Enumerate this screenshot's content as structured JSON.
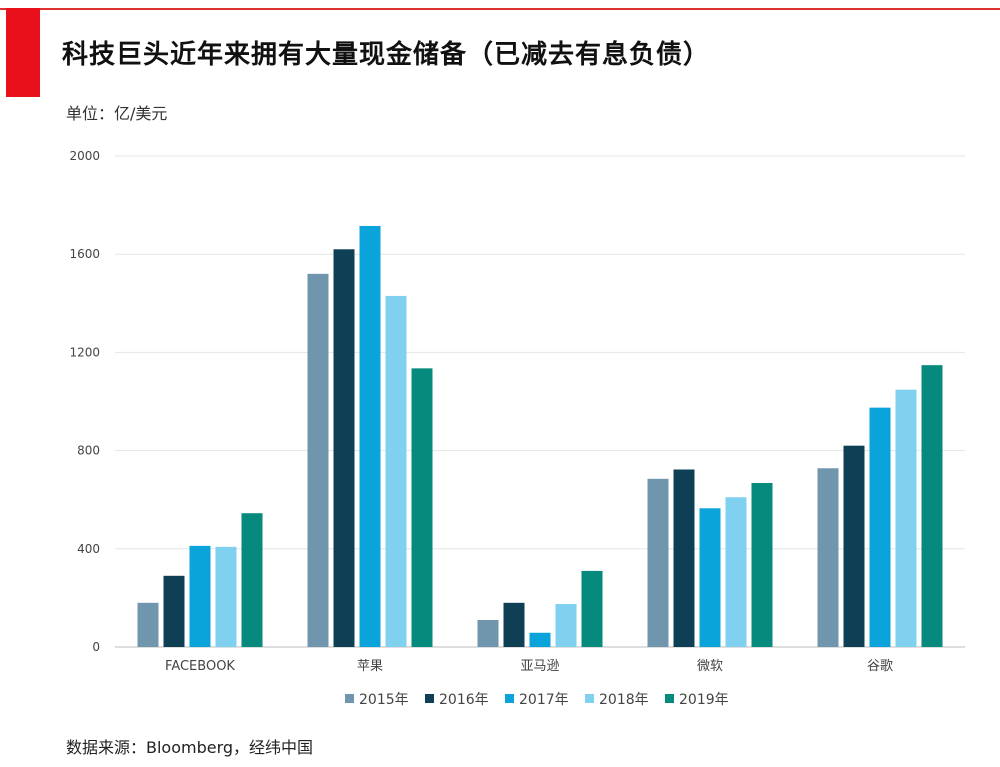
{
  "header": {
    "title": "科技巨头近年来拥有大量现金储备（已减去有息负债）",
    "unit": "单位：亿/美元"
  },
  "footer": {
    "source": "数据来源：Bloomberg，经纬中国"
  },
  "colors": {
    "accent": "#e8101a",
    "grid": "#e6e6e6",
    "axis": "#bdbdbd"
  },
  "chart_data": {
    "type": "bar",
    "title": "科技巨头近年来拥有大量现金储备（已减去有息负债）",
    "xlabel": "",
    "ylabel": "单位：亿/美元",
    "ylim": [
      0,
      2000
    ],
    "yticks": [
      0,
      400,
      800,
      1200,
      1600,
      2000
    ],
    "grid": true,
    "legend_position": "bottom",
    "categories": [
      "FACEBOOK",
      "苹果",
      "亚马逊",
      "微软",
      "谷歌"
    ],
    "series": [
      {
        "name": "2015年",
        "color": "#6f96ad",
        "values": [
          180,
          1520,
          110,
          685,
          728
        ]
      },
      {
        "name": "2016年",
        "color": "#0e3f55",
        "values": [
          290,
          1620,
          180,
          723,
          820
        ]
      },
      {
        "name": "2017年",
        "color": "#0aa3da",
        "values": [
          412,
          1715,
          58,
          565,
          975
        ]
      },
      {
        "name": "2018年",
        "color": "#7fd1ef",
        "values": [
          408,
          1430,
          175,
          610,
          1048
        ]
      },
      {
        "name": "2019年",
        "color": "#078a7e",
        "values": [
          545,
          1135,
          310,
          668,
          1148
        ]
      }
    ]
  }
}
